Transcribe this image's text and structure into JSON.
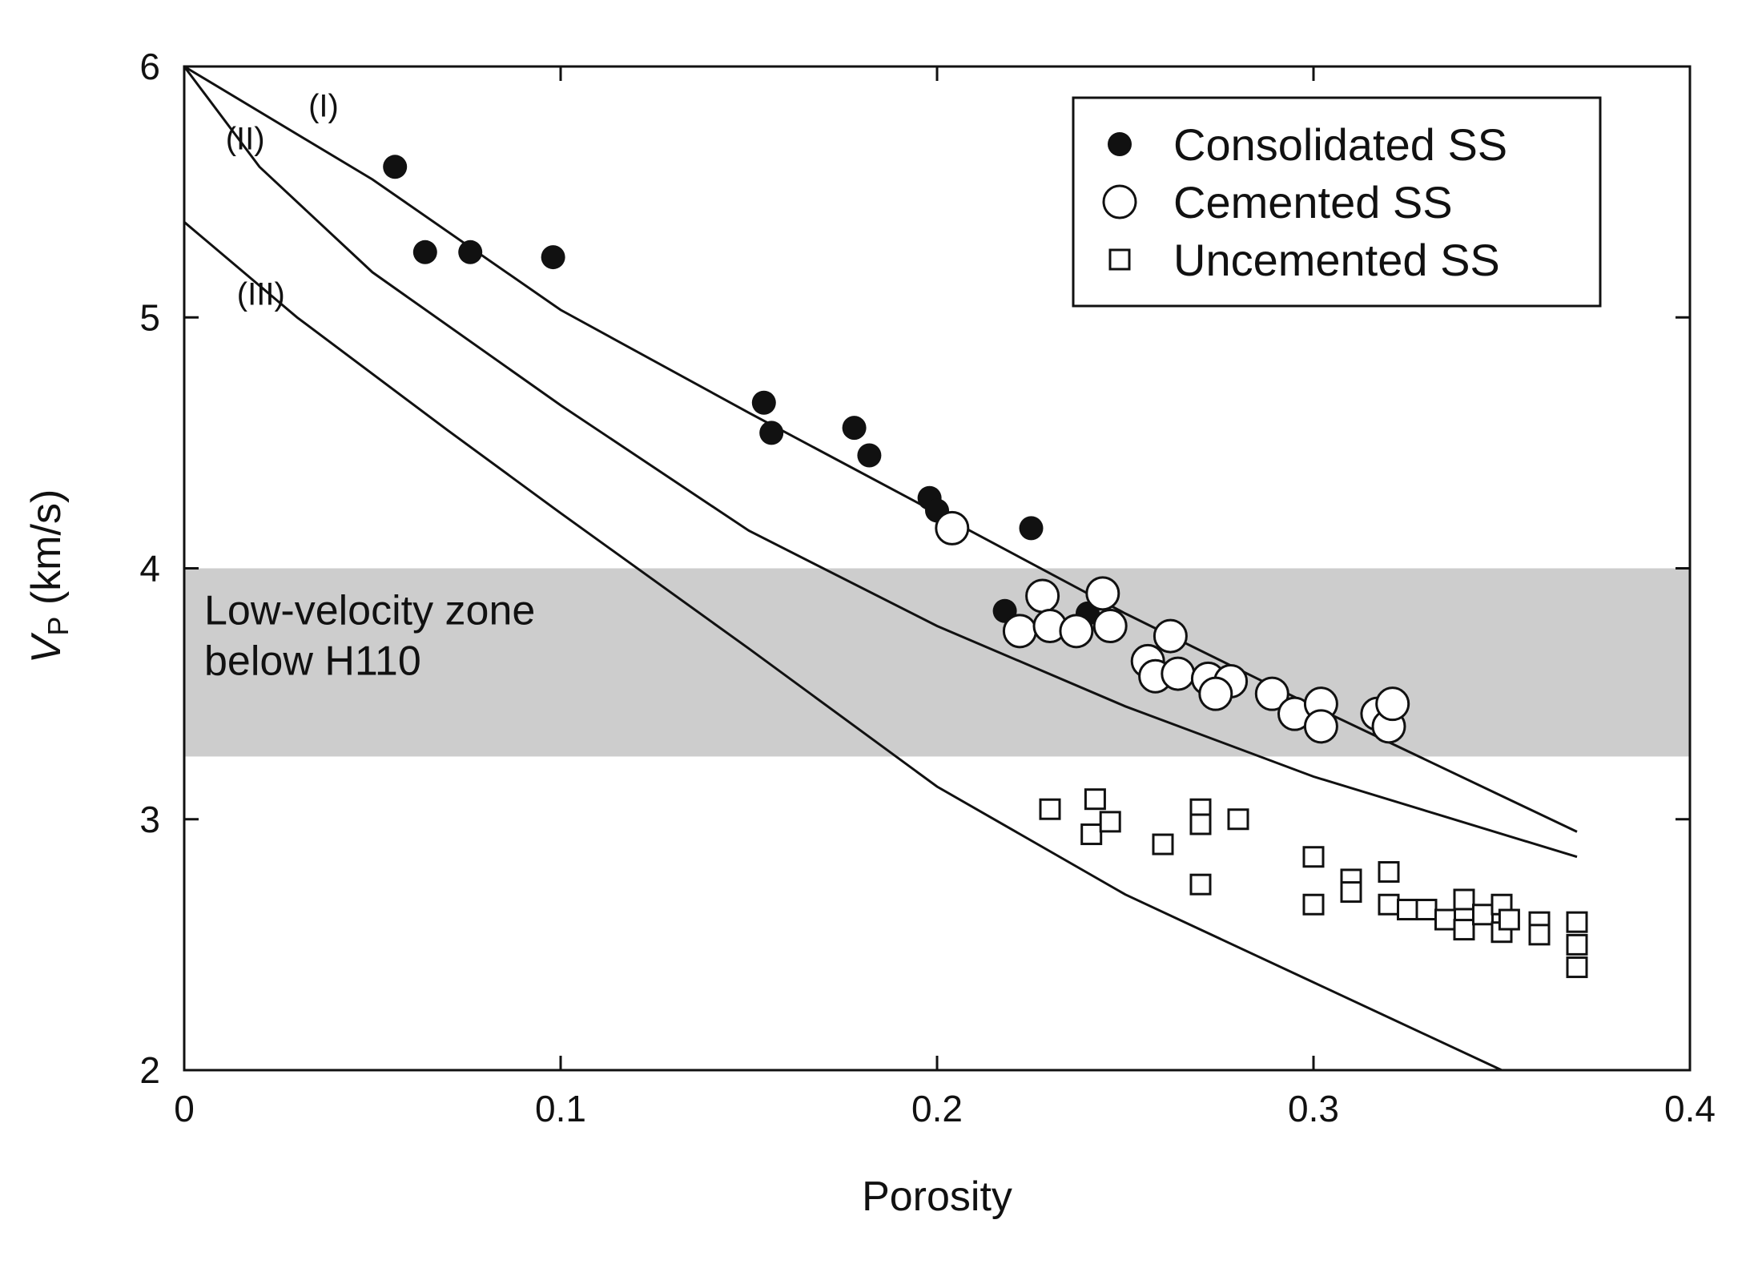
{
  "chart_data": {
    "type": "scatter",
    "title": "",
    "xlabel": "Porosity",
    "ylabel_main": "V",
    "ylabel_sub": "P",
    "ylabel_units": " (km/s)",
    "xlim": [
      0,
      0.4
    ],
    "ylim": [
      2,
      6
    ],
    "xticks": [
      0,
      0.1,
      0.2,
      0.3,
      0.4
    ],
    "xtick_labels": [
      "0",
      "0.1",
      "0.2",
      "0.3",
      "0.4"
    ],
    "yticks": [
      2,
      3,
      4,
      5,
      6
    ],
    "ytick_labels": [
      "2",
      "3",
      "4",
      "5",
      "6"
    ],
    "grid": false,
    "legend_position": "top-right",
    "band": {
      "y_from": 3.25,
      "y_to": 4.0,
      "color": "#cdcdcd",
      "label_line1": "Low-velocity zone",
      "label_line2": "below H110"
    },
    "curves": [
      {
        "name": "I",
        "label": "(I)",
        "x": [
          0.0,
          0.05,
          0.1,
          0.15,
          0.2,
          0.25,
          0.3,
          0.37
        ],
        "y": [
          6.0,
          5.55,
          5.03,
          4.62,
          4.22,
          3.82,
          3.45,
          2.95
        ]
      },
      {
        "name": "II",
        "label": "(II)",
        "x": [
          0.0,
          0.02,
          0.05,
          0.1,
          0.15,
          0.2,
          0.25,
          0.3,
          0.37
        ],
        "y": [
          6.0,
          5.6,
          5.18,
          4.65,
          4.15,
          3.77,
          3.45,
          3.17,
          2.85
        ]
      },
      {
        "name": "III",
        "label": "(III)",
        "x": [
          0.0,
          0.03,
          0.07,
          0.1,
          0.15,
          0.2,
          0.25,
          0.3,
          0.35
        ],
        "y": [
          5.38,
          5.0,
          4.55,
          4.22,
          3.68,
          3.13,
          2.7,
          2.35,
          2.0
        ]
      }
    ],
    "series": [
      {
        "name": "Consolidated SS",
        "marker": "filled-circle",
        "points": [
          [
            0.056,
            5.6
          ],
          [
            0.064,
            5.26
          ],
          [
            0.076,
            5.26
          ],
          [
            0.098,
            5.24
          ],
          [
            0.154,
            4.66
          ],
          [
            0.156,
            4.54
          ],
          [
            0.178,
            4.56
          ],
          [
            0.182,
            4.45
          ],
          [
            0.198,
            4.28
          ],
          [
            0.2,
            4.23
          ],
          [
            0.225,
            4.16
          ],
          [
            0.218,
            3.83
          ],
          [
            0.24,
            3.82
          ]
        ]
      },
      {
        "name": "Cemented SS",
        "marker": "open-circle",
        "points": [
          [
            0.204,
            4.16
          ],
          [
            0.228,
            3.89
          ],
          [
            0.244,
            3.9
          ],
          [
            0.222,
            3.75
          ],
          [
            0.23,
            3.77
          ],
          [
            0.237,
            3.75
          ],
          [
            0.246,
            3.77
          ],
          [
            0.262,
            3.73
          ],
          [
            0.256,
            3.63
          ],
          [
            0.258,
            3.57
          ],
          [
            0.264,
            3.58
          ],
          [
            0.272,
            3.56
          ],
          [
            0.278,
            3.55
          ],
          [
            0.274,
            3.5
          ],
          [
            0.289,
            3.5
          ],
          [
            0.295,
            3.42
          ],
          [
            0.302,
            3.46
          ],
          [
            0.302,
            3.37
          ],
          [
            0.317,
            3.42
          ],
          [
            0.32,
            3.37
          ],
          [
            0.321,
            3.46
          ]
        ]
      },
      {
        "name": "Uncemented SS",
        "marker": "open-square",
        "points": [
          [
            0.23,
            3.04
          ],
          [
            0.242,
            3.08
          ],
          [
            0.241,
            2.94
          ],
          [
            0.246,
            2.99
          ],
          [
            0.26,
            2.9
          ],
          [
            0.27,
            3.04
          ],
          [
            0.27,
            2.98
          ],
          [
            0.27,
            2.74
          ],
          [
            0.28,
            3.0
          ],
          [
            0.3,
            2.85
          ],
          [
            0.3,
            2.66
          ],
          [
            0.31,
            2.76
          ],
          [
            0.31,
            2.71
          ],
          [
            0.32,
            2.79
          ],
          [
            0.32,
            2.66
          ],
          [
            0.325,
            2.64
          ],
          [
            0.33,
            2.64
          ],
          [
            0.335,
            2.6
          ],
          [
            0.34,
            2.68
          ],
          [
            0.34,
            2.56
          ],
          [
            0.345,
            2.62
          ],
          [
            0.35,
            2.66
          ],
          [
            0.35,
            2.55
          ],
          [
            0.352,
            2.6
          ],
          [
            0.36,
            2.59
          ],
          [
            0.36,
            2.54
          ],
          [
            0.37,
            2.59
          ],
          [
            0.37,
            2.5
          ],
          [
            0.37,
            2.41
          ]
        ]
      }
    ]
  }
}
